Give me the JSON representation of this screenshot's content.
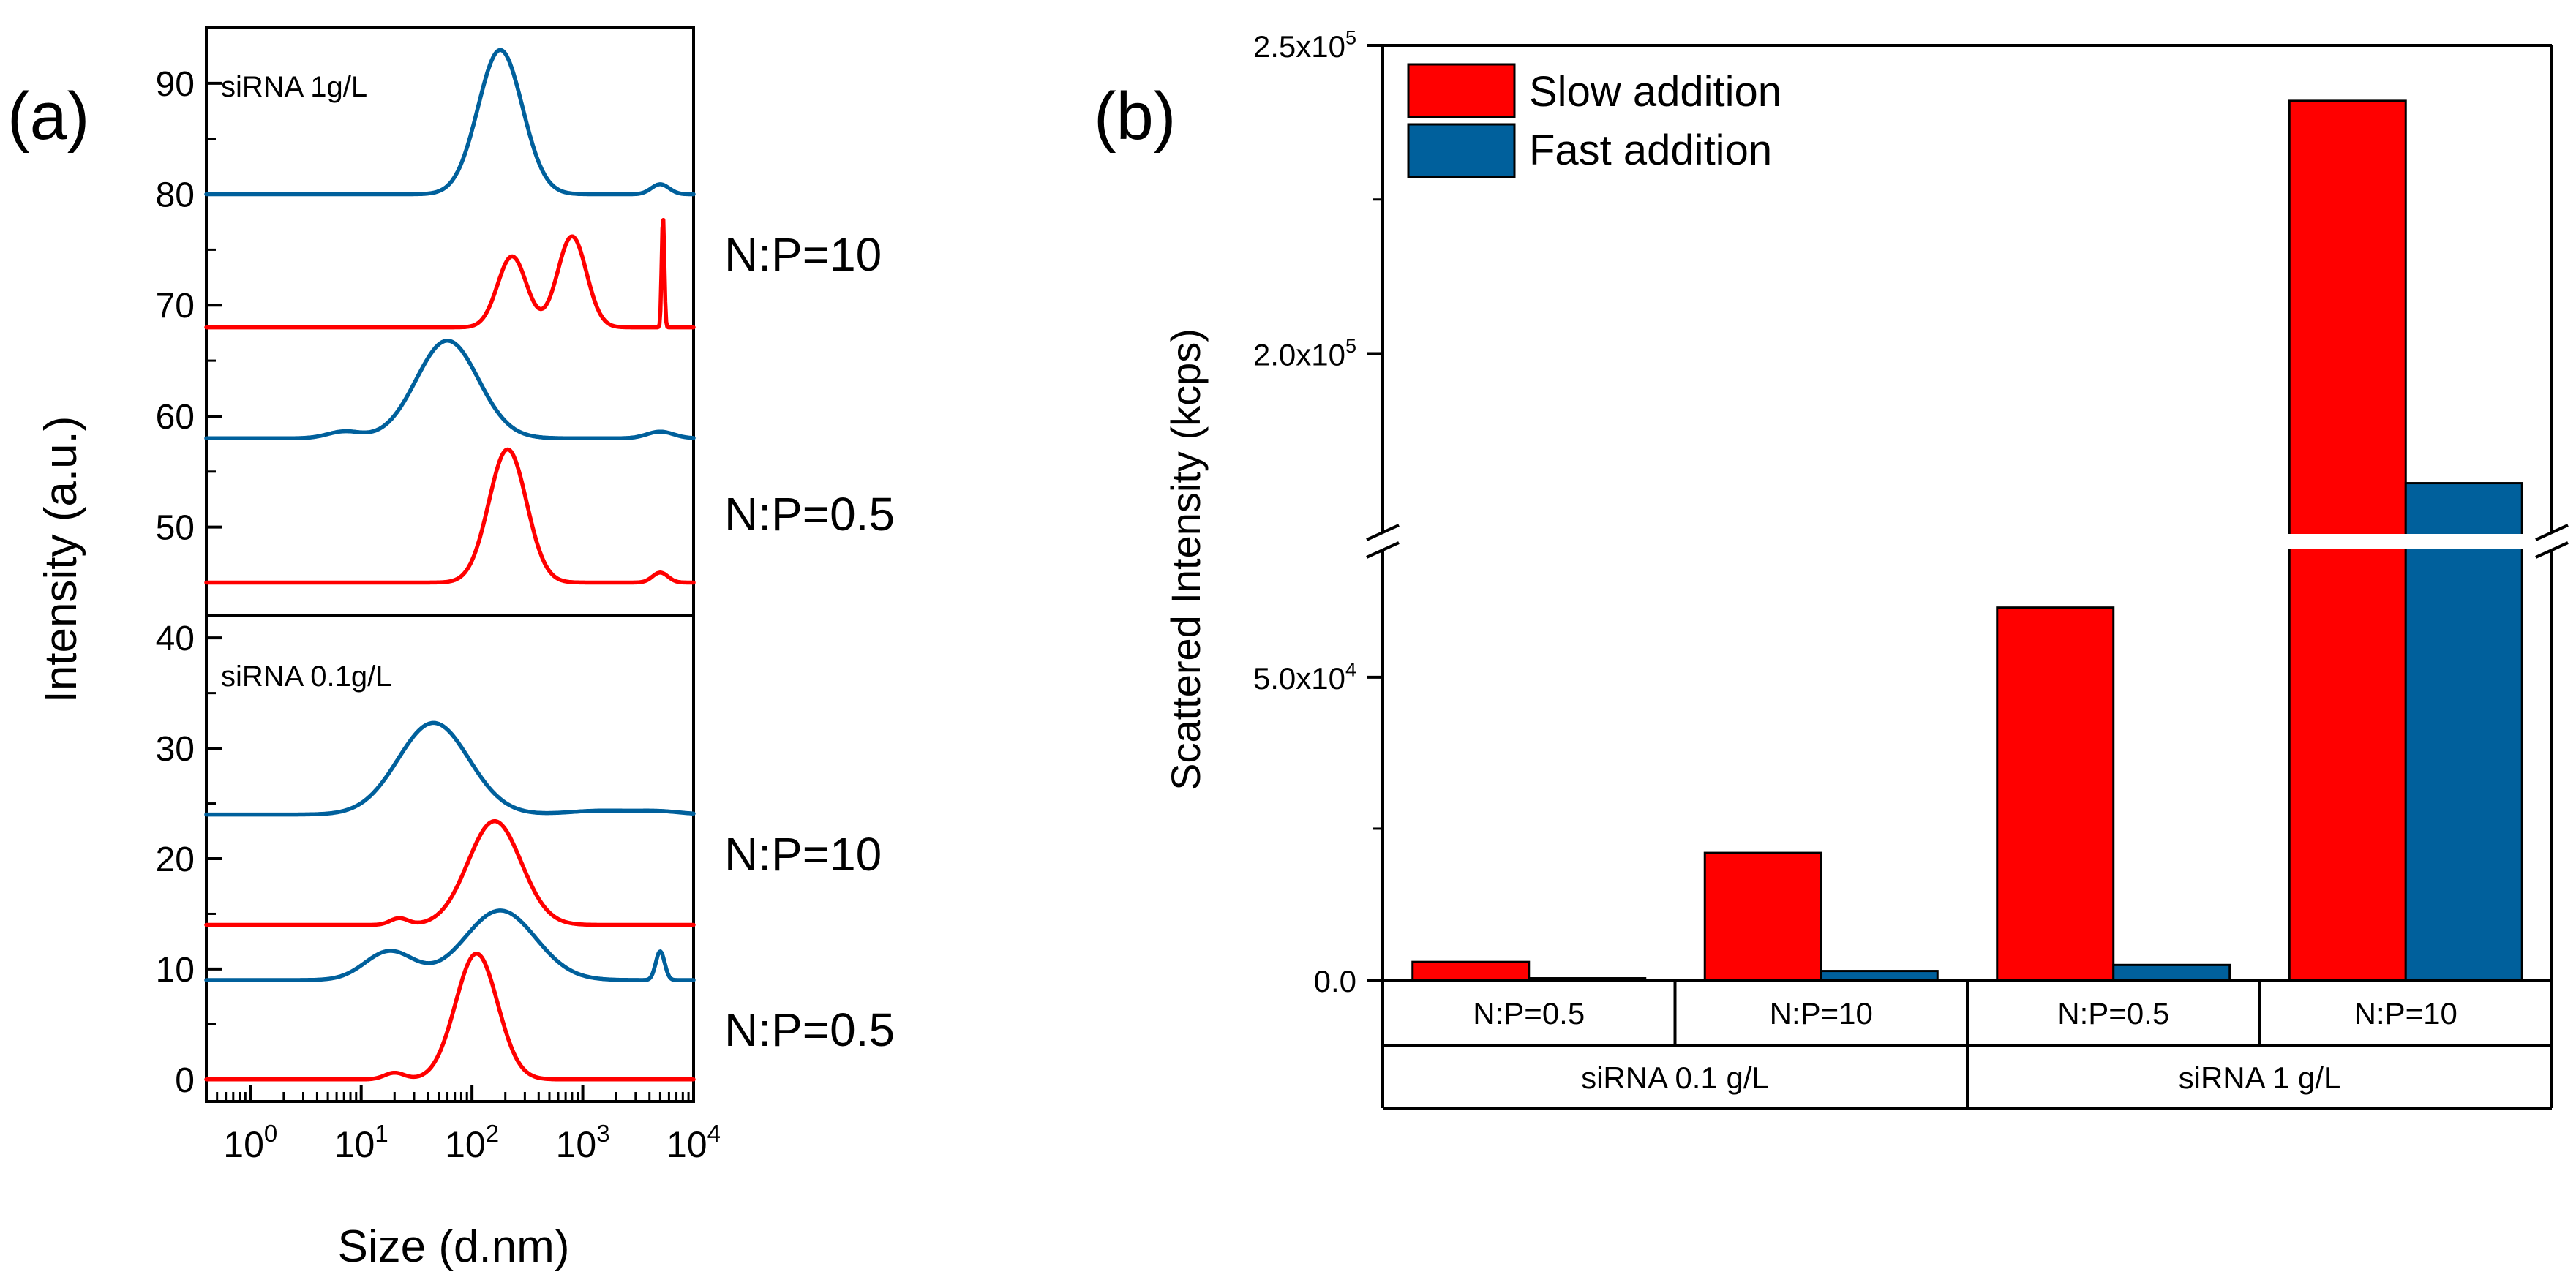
{
  "panel_a": {
    "panel_label": "(a)",
    "ylabel": "Intensity (a.u.)",
    "xlabel": "Size (d.nm)",
    "top_note": "siRNA 1g/L",
    "bottom_note": "siRNA 0.1g/L",
    "annotations": [
      "N:P=10",
      "N:P=0.5",
      "N:P=10",
      "N:P=0.5"
    ]
  },
  "panel_b": {
    "panel_label": "(b)",
    "ylabel": "Scattered Intensity (kcps)",
    "legend": [
      "Slow addition",
      "Fast addition"
    ]
  },
  "colors": {
    "red": "#ff0000",
    "blue": "#00609c",
    "black": "#000000"
  },
  "chart_data": [
    {
      "type": "line",
      "title": "",
      "xlabel": "Size (d.nm)",
      "ylabel": "Intensity (a.u.)",
      "x_scale": "log",
      "xlim": [
        0.4,
        10000
      ],
      "xticks": [
        "10^0",
        "10^1",
        "10^2",
        "10^3",
        "10^4"
      ],
      "subplots": [
        {
          "note": "siRNA 1g/L",
          "ylim": [
            42,
            95
          ],
          "yticks": [
            50,
            60,
            70,
            80,
            90
          ],
          "series": [
            {
              "name": "N:P=10 fast",
              "color": "blue",
              "baseline": 80,
              "peaks": [
                [
                  180,
                  13,
                  0.2
                ],
                [
                  5000,
                  0.9,
                  0.08
                ]
              ],
              "x_start": 0.4,
              "x_end": 10000
            },
            {
              "name": "N:P=10 slow",
              "color": "red",
              "baseline": 68,
              "peaks": [
                [
                  230,
                  6.4,
                  0.13
                ],
                [
                  800,
                  8.2,
                  0.13
                ],
                [
                  5300,
                  10,
                  0.012
                ]
              ],
              "x_start": 0.4,
              "x_end": 10000
            },
            {
              "name": "N:P=0.5 fast",
              "color": "blue",
              "baseline": 58,
              "peaks": [
                [
                  60,
                  8.8,
                  0.28
                ],
                [
                  7,
                  0.6,
                  0.15
                ],
                [
                  5000,
                  0.6,
                  0.12
                ]
              ],
              "x_start": 0.4,
              "x_end": 10000
            },
            {
              "name": "N:P=0.5 slow",
              "color": "red",
              "baseline": 45,
              "peaks": [
                [
                  210,
                  12,
                  0.17
                ],
                [
                  5000,
                  0.9,
                  0.07
                ]
              ],
              "x_start": 0.4,
              "x_end": 10000
            }
          ]
        },
        {
          "note": "siRNA 0.1g/L",
          "ylim": [
            -2,
            42
          ],
          "yticks": [
            0,
            10,
            20,
            30,
            40
          ],
          "series": [
            {
              "name": "N:P=10 fast",
              "color": "blue",
              "baseline": 24,
              "peaks": [
                [
                  45,
                  8.3,
                  0.32
                ],
                [
                  1500,
                  0.35,
                  0.3
                ],
                [
                  5000,
                  0.25,
                  0.2
                ]
              ],
              "x_start": 0.4,
              "x_end": 10000
            },
            {
              "name": "N:P=10 slow",
              "color": "red",
              "baseline": 14,
              "peaks": [
                [
                  160,
                  9.4,
                  0.24
                ],
                [
                  22,
                  0.6,
                  0.08
                ]
              ],
              "x_start": 0.4,
              "x_end": 10000
            },
            {
              "name": "N:P=0.5 fast",
              "color": "blue",
              "baseline": 9,
              "peaks": [
                [
                  180,
                  6.3,
                  0.32
                ],
                [
                  18,
                  2.6,
                  0.22
                ],
                [
                  5000,
                  2.6,
                  0.04
                ]
              ],
              "x_start": 0.4,
              "x_end": 10000
            },
            {
              "name": "N:P=0.5 slow",
              "color": "red",
              "baseline": 0,
              "peaks": [
                [
                  110,
                  11.4,
                  0.19
                ],
                [
                  20,
                  0.6,
                  0.09
                ]
              ],
              "x_start": 0.4,
              "x_end": 10000
            }
          ]
        }
      ]
    },
    {
      "type": "bar",
      "title": "",
      "xlabel": "",
      "ylabel": "Scattered Intensity (kcps)",
      "axis_break": [
        71000,
        171000
      ],
      "ylim": [
        0,
        250000
      ],
      "yticks": [
        "0.0",
        "5.0x10^4",
        "2.0x10^5",
        "2.5x10^5"
      ],
      "categories": [
        "N:P=0.5",
        "N:P=10",
        "N:P=0.5",
        "N:P=10"
      ],
      "groups": [
        {
          "label": "siRNA 0.1 g/L",
          "span": [
            0,
            1
          ]
        },
        {
          "label": "siRNA 1 g/L",
          "span": [
            2,
            3
          ]
        }
      ],
      "series": [
        {
          "name": "Slow addition",
          "color": "red",
          "values": [
            3000,
            21000,
            61500,
            241000
          ]
        },
        {
          "name": "Fast addition",
          "color": "blue",
          "values": [
            300,
            1500,
            2500,
            179000
          ]
        }
      ],
      "legend_position": "top-left"
    }
  ]
}
